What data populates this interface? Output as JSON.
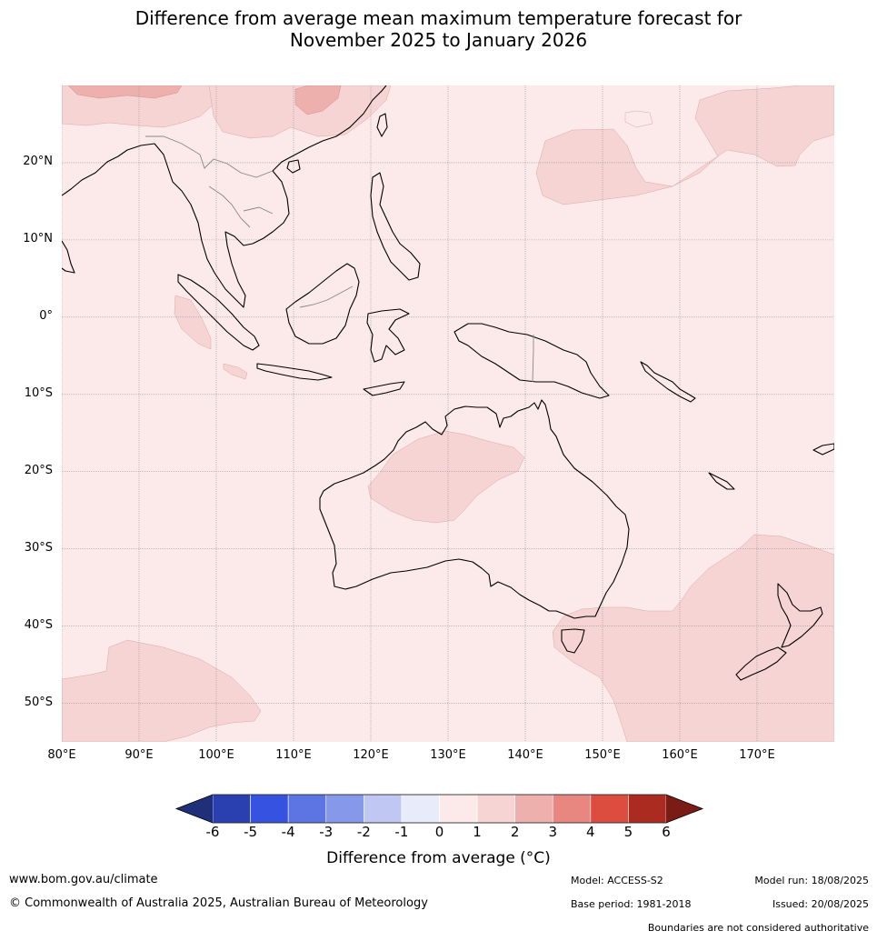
{
  "title_line1": "Difference from average mean maximum temperature forecast for",
  "title_line2": "November 2025 to January 2026",
  "map": {
    "lon_range": [
      80,
      180
    ],
    "lat_range": [
      -55,
      30
    ],
    "lat_labels": [
      "20°N",
      "10°N",
      "0°",
      "10°S",
      "20°S",
      "30°S",
      "40°S",
      "50°S"
    ],
    "lat_values": [
      20,
      10,
      0,
      -10,
      -20,
      -30,
      -40,
      -50
    ],
    "lon_labels": [
      "80°E",
      "90°E",
      "100°E",
      "110°E",
      "120°E",
      "130°E",
      "140°E",
      "150°E",
      "160°E",
      "170°E"
    ],
    "lon_values": [
      80,
      90,
      100,
      110,
      120,
      130,
      140,
      150,
      160,
      170
    ],
    "background_category": "0 to 1",
    "background_color": "#fbeae9",
    "light_anomaly_color": "#f5d4d3",
    "medium_anomaly_color": "#edb0ad",
    "land_outline_color": "#000000",
    "border_color": "#888888",
    "grid": true
  },
  "colorbar": {
    "ticks": [
      "-6",
      "-5",
      "-4",
      "-3",
      "-2",
      "-1",
      "0",
      "1",
      "2",
      "3",
      "4",
      "5",
      "6"
    ],
    "below_min_color": "#1f2f7a",
    "colors": [
      "#2a3fb0",
      "#3552e0",
      "#5c75e3",
      "#8598ea",
      "#bfc7f2",
      "#e8ebfa",
      "#fbeae9",
      "#f5d4d3",
      "#edb0ad",
      "#e78780",
      "#dc4d40",
      "#ab2b20"
    ],
    "above_max_color": "#7a1b16",
    "title": "Difference from average (°C)"
  },
  "footer": {
    "website": "www.bom.gov.au/climate",
    "copyright": "© Commonwealth of Australia 2025, Australian Bureau of Meteorology",
    "model": "Model: ACCESS-S2",
    "base_period": "Base period: 1981-2018",
    "model_run": "Model run: 18/08/2025",
    "issued": "Issued: 20/08/2025",
    "disclaimer": "Boundaries are not considered authoritative"
  }
}
